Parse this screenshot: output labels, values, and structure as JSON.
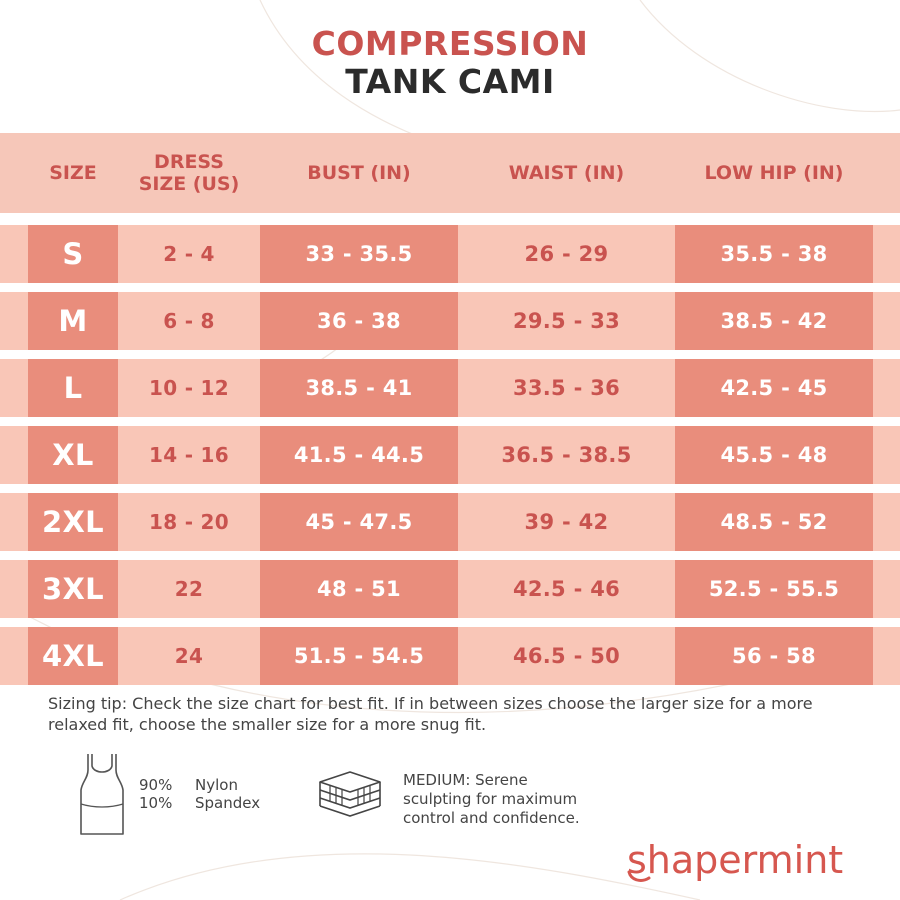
{
  "title": {
    "line1": "COMPRESSION",
    "line2": "TANK CAMI"
  },
  "table": {
    "headers": {
      "size": "SIZE",
      "dress_line1": "DRESS",
      "dress_line2": "SIZE (US)",
      "bust": "BUST (IN)",
      "waist": "WAIST (IN)",
      "hip": "LOW HIP (IN)"
    },
    "rows": [
      {
        "size": "S",
        "dress": "2 - 4",
        "bust": "33 - 35.5",
        "waist": "26 - 29",
        "hip": "35.5 - 38"
      },
      {
        "size": "M",
        "dress": "6 - 8",
        "bust": "36 - 38",
        "waist": "29.5 - 33",
        "hip": "38.5 - 42"
      },
      {
        "size": "L",
        "dress": "10 - 12",
        "bust": "38.5 - 41",
        "waist": "33.5 - 36",
        "hip": "42.5 - 45"
      },
      {
        "size": "XL",
        "dress": "14 - 16",
        "bust": "41.5 - 44.5",
        "waist": "36.5 - 38.5",
        "hip": "45.5 - 48"
      },
      {
        "size": "2XL",
        "dress": "18 - 20",
        "bust": "45 - 47.5",
        "waist": "39 - 42",
        "hip": "48.5 - 52"
      },
      {
        "size": "3XL",
        "dress": "22",
        "bust": "48 - 51",
        "waist": "42.5 - 46",
        "hip": "52.5 - 55.5"
      },
      {
        "size": "4XL",
        "dress": "24",
        "bust": "51.5 - 54.5",
        "waist": "46.5 - 50",
        "hip": "56 - 58"
      }
    ]
  },
  "tip": "Sizing tip: Check the size chart for best fit. If in between sizes choose the larger size for a more relaxed fit, choose the smaller size for a more snug fit.",
  "material": {
    "icon": "tank-top-icon",
    "pct1": "90%",
    "pct2": "10%",
    "name1": "Nylon",
    "name2": "Spandex"
  },
  "compression": {
    "icon": "layers-icon",
    "line1": "MEDIUM: Serene",
    "line2": "sculpting for maximum",
    "line3": "control and confidence."
  },
  "brand": {
    "name": "shapermint",
    "color": "#d6574f"
  },
  "colors": {
    "accent": "#c9534f",
    "dark_cell": "#e98d7c",
    "light_cell": "#f9c6b7"
  }
}
